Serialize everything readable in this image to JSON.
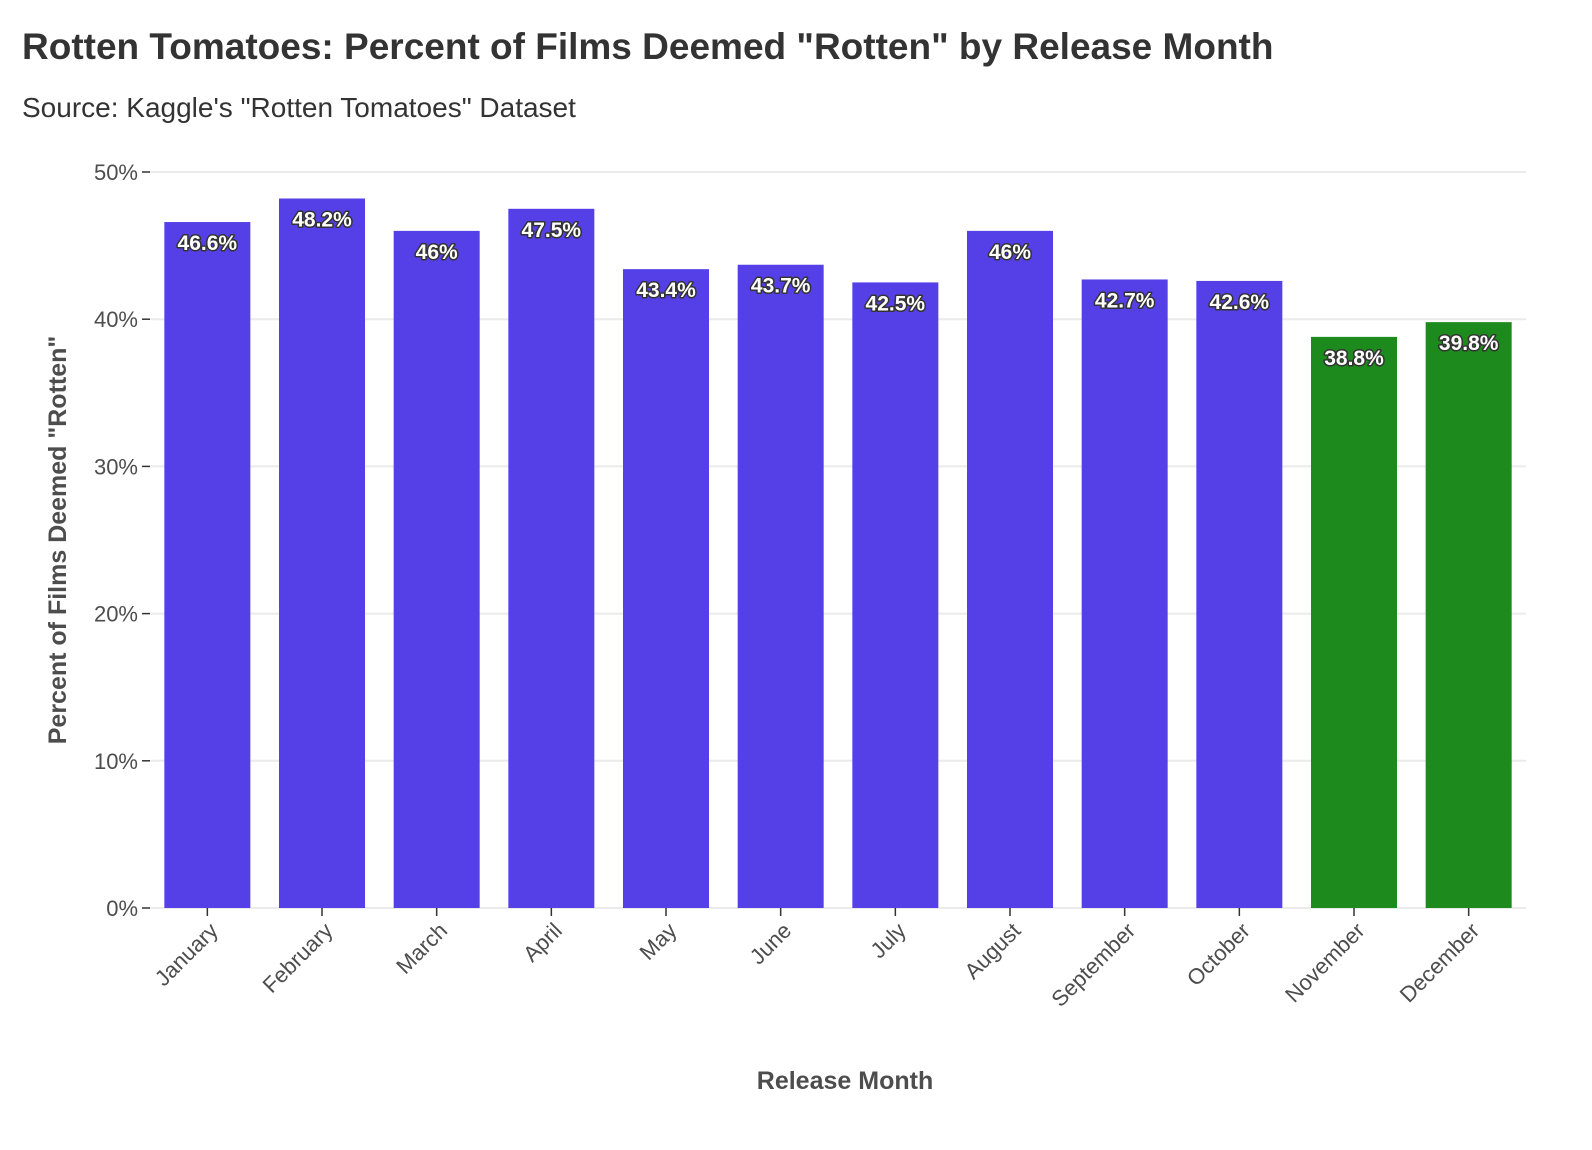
{
  "title": "Rotten Tomatoes: Percent of Films Deemed \"Rotten\" by Release Month",
  "subtitle": "Source: Kaggle's \"Rotten Tomatoes\" Dataset",
  "colors": {
    "default_bar": "#5540e8",
    "highlight_bar": "#1c8a1c",
    "grid": "#ebebeb",
    "label_outline": "#333333"
  },
  "chart_data": {
    "type": "bar",
    "xlabel": "Release Month",
    "ylabel": "Percent of Films Deemed \"Rotten\"",
    "ylim": [
      0,
      50
    ],
    "yticks": [
      "0%",
      "10%",
      "20%",
      "30%",
      "40%",
      "50%"
    ],
    "grid": true,
    "legend": "none",
    "categories": [
      "January",
      "February",
      "March",
      "April",
      "May",
      "June",
      "July",
      "August",
      "September",
      "October",
      "November",
      "December"
    ],
    "values": [
      46.6,
      48.2,
      46,
      47.5,
      43.4,
      43.7,
      42.5,
      46,
      42.7,
      42.6,
      38.8,
      39.8
    ],
    "data_labels": [
      "46.6%",
      "48.2%",
      "46%",
      "47.5%",
      "43.4%",
      "43.7%",
      "42.5%",
      "46%",
      "42.7%",
      "42.6%",
      "38.8%",
      "39.8%"
    ],
    "highlighted": [
      false,
      false,
      false,
      false,
      false,
      false,
      false,
      false,
      false,
      false,
      true,
      true
    ]
  }
}
